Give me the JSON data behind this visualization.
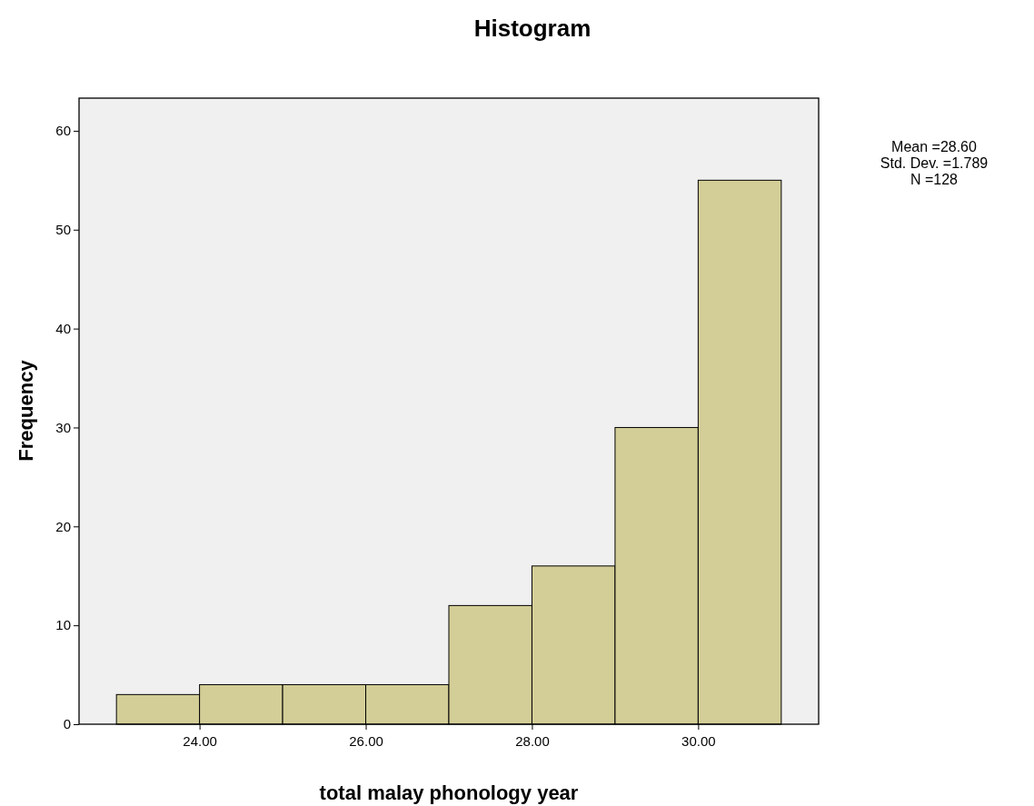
{
  "chart_data": {
    "type": "histogram",
    "title": "Histogram",
    "xlabel": "total malay phonology year",
    "ylabel": "Frequency",
    "bins": [
      23,
      24,
      25,
      26,
      27,
      28,
      29,
      30,
      31
    ],
    "values": [
      3,
      4,
      4,
      4,
      12,
      16,
      30,
      55
    ],
    "color": "#d3ce97",
    "xlim": [
      22.55,
      31.45
    ],
    "xticks": [
      {
        "value": 24,
        "label": "24.00"
      },
      {
        "value": 26,
        "label": "26.00"
      },
      {
        "value": 28,
        "label": "28.00"
      },
      {
        "value": 30,
        "label": "30.00"
      }
    ],
    "ylim": [
      0,
      63.3
    ],
    "yticks": [
      0,
      10,
      20,
      30,
      40,
      50,
      60
    ],
    "grid": false,
    "annotations": [
      "Mean =28.60",
      "Std. Dev. =1.789",
      "N =128"
    ]
  }
}
